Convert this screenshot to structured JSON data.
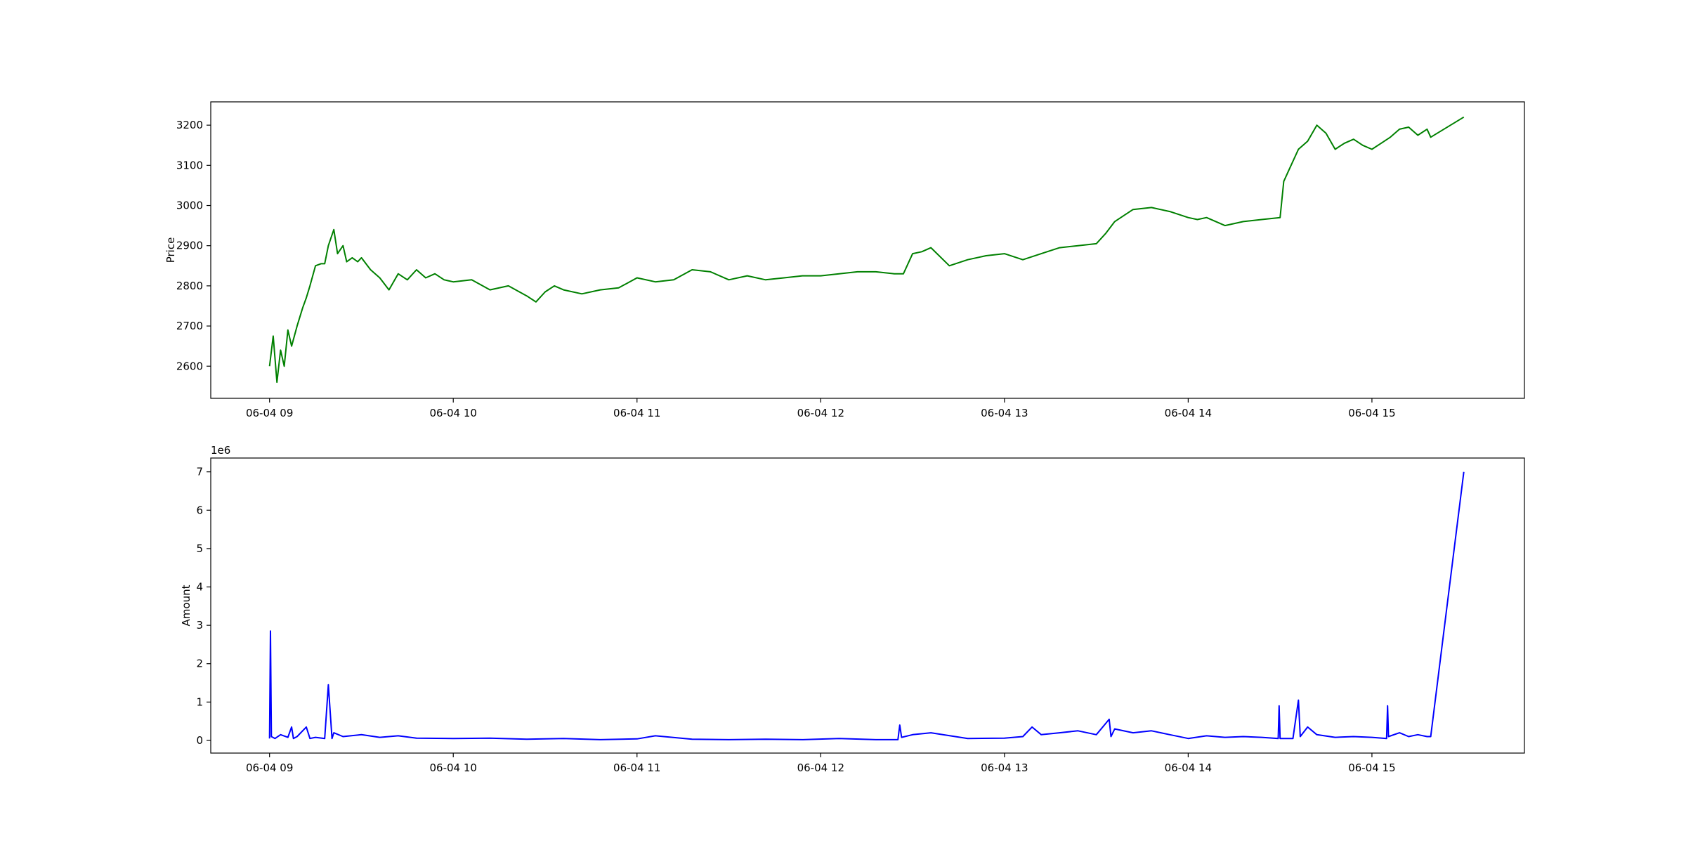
{
  "chart_data": [
    {
      "type": "line",
      "ylabel": "Price",
      "xlabel": "",
      "color": "#008000",
      "ylim": [
        2520,
        3258
      ],
      "yticks": [
        2600,
        2700,
        2800,
        2900,
        3000,
        3100,
        3200
      ],
      "xlim_hours": [
        8.68,
        15.83
      ],
      "xticks": [
        "06-04 09",
        "06-04 10",
        "06-04 11",
        "06-04 12",
        "06-04 13",
        "06-04 14",
        "06-04 15"
      ],
      "xtick_hours": [
        9,
        10,
        11,
        12,
        13,
        14,
        15
      ],
      "grid": false,
      "series": [
        {
          "x_hours": [
            9.0,
            9.02,
            9.04,
            9.06,
            9.08,
            9.1,
            9.12,
            9.15,
            9.18,
            9.2,
            9.22,
            9.25,
            9.28,
            9.3,
            9.32,
            9.35,
            9.37,
            9.4,
            9.42,
            9.45,
            9.48,
            9.5,
            9.55,
            9.6,
            9.65,
            9.7,
            9.75,
            9.8,
            9.85,
            9.9,
            9.95,
            10.0,
            10.1,
            10.2,
            10.3,
            10.4,
            10.45,
            10.5,
            10.55,
            10.6,
            10.7,
            10.8,
            10.9,
            11.0,
            11.1,
            11.2,
            11.3,
            11.4,
            11.5,
            11.6,
            11.7,
            11.8,
            11.9,
            12.0,
            12.1,
            12.2,
            12.3,
            12.4,
            12.45,
            12.5,
            12.55,
            12.6,
            12.7,
            12.8,
            12.9,
            13.0,
            13.1,
            13.2,
            13.3,
            13.4,
            13.5,
            13.55,
            13.6,
            13.65,
            13.7,
            13.8,
            13.9,
            14.0,
            14.05,
            14.1,
            14.2,
            14.3,
            14.4,
            14.5,
            14.52,
            14.55,
            14.6,
            14.65,
            14.7,
            14.75,
            14.8,
            14.85,
            14.9,
            14.95,
            15.0,
            15.05,
            15.1,
            15.15,
            15.2,
            15.25,
            15.3,
            15.32,
            15.5
          ],
          "values": [
            2600,
            2675,
            2560,
            2640,
            2600,
            2690,
            2650,
            2700,
            2745,
            2770,
            2800,
            2850,
            2855,
            2855,
            2900,
            2940,
            2880,
            2900,
            2860,
            2870,
            2860,
            2870,
            2840,
            2820,
            2790,
            2830,
            2815,
            2840,
            2820,
            2830,
            2815,
            2810,
            2815,
            2790,
            2800,
            2775,
            2760,
            2785,
            2800,
            2790,
            2780,
            2790,
            2795,
            2820,
            2810,
            2815,
            2840,
            2835,
            2815,
            2825,
            2815,
            2820,
            2825,
            2825,
            2830,
            2835,
            2835,
            2830,
            2830,
            2880,
            2885,
            2895,
            2850,
            2865,
            2875,
            2880,
            2865,
            2880,
            2895,
            2900,
            2905,
            2930,
            2960,
            2975,
            2990,
            2995,
            2985,
            2970,
            2965,
            2970,
            2950,
            2960,
            2965,
            2970,
            3060,
            3090,
            3140,
            3160,
            3200,
            3180,
            3140,
            3155,
            3165,
            3150,
            3140,
            3155,
            3170,
            3190,
            3195,
            3175,
            3190,
            3170,
            3220
          ]
        }
      ]
    },
    {
      "type": "line",
      "ylabel": "Amount",
      "xlabel": "",
      "color": "#0000ff",
      "exponent_label": "1e6",
      "ylim": [
        -0.33,
        7.36
      ],
      "yticks": [
        0,
        1,
        2,
        3,
        4,
        5,
        6,
        7
      ],
      "xlim_hours": [
        8.68,
        15.83
      ],
      "xticks": [
        "06-04 09",
        "06-04 10",
        "06-04 11",
        "06-04 12",
        "06-04 13",
        "06-04 14",
        "06-04 15"
      ],
      "xtick_hours": [
        9,
        10,
        11,
        12,
        13,
        14,
        15
      ],
      "grid": false,
      "series": [
        {
          "x_hours": [
            9.0,
            9.005,
            9.01,
            9.03,
            9.06,
            9.1,
            9.12,
            9.13,
            9.15,
            9.2,
            9.22,
            9.25,
            9.3,
            9.32,
            9.34,
            9.35,
            9.4,
            9.5,
            9.6,
            9.7,
            9.8,
            10.0,
            10.2,
            10.4,
            10.6,
            10.8,
            11.0,
            11.1,
            11.3,
            11.5,
            11.7,
            11.9,
            12.1,
            12.3,
            12.42,
            12.43,
            12.44,
            12.5,
            12.6,
            12.8,
            13.0,
            13.1,
            13.15,
            13.2,
            13.3,
            13.4,
            13.5,
            13.57,
            13.58,
            13.6,
            13.7,
            13.8,
            13.9,
            14.0,
            14.1,
            14.2,
            14.3,
            14.4,
            14.49,
            14.495,
            14.5,
            14.57,
            14.6,
            14.61,
            14.65,
            14.7,
            14.8,
            14.9,
            15.0,
            15.08,
            15.085,
            15.09,
            15.15,
            15.2,
            15.25,
            15.3,
            15.32,
            15.5
          ],
          "values": [
            0.05,
            2.85,
            0.1,
            0.05,
            0.15,
            0.08,
            0.35,
            0.05,
            0.1,
            0.35,
            0.05,
            0.08,
            0.05,
            1.45,
            0.05,
            0.2,
            0.1,
            0.15,
            0.08,
            0.12,
            0.06,
            0.05,
            0.06,
            0.03,
            0.05,
            0.02,
            0.04,
            0.12,
            0.03,
            0.02,
            0.03,
            0.02,
            0.05,
            0.02,
            0.02,
            0.4,
            0.08,
            0.15,
            0.2,
            0.05,
            0.06,
            0.1,
            0.35,
            0.15,
            0.2,
            0.25,
            0.15,
            0.55,
            0.1,
            0.3,
            0.2,
            0.25,
            0.15,
            0.05,
            0.12,
            0.08,
            0.1,
            0.08,
            0.05,
            0.9,
            0.05,
            0.05,
            1.05,
            0.1,
            0.35,
            0.15,
            0.08,
            0.1,
            0.08,
            0.05,
            0.9,
            0.1,
            0.2,
            0.1,
            0.15,
            0.1,
            0.1,
            7.0
          ]
        }
      ]
    }
  ]
}
